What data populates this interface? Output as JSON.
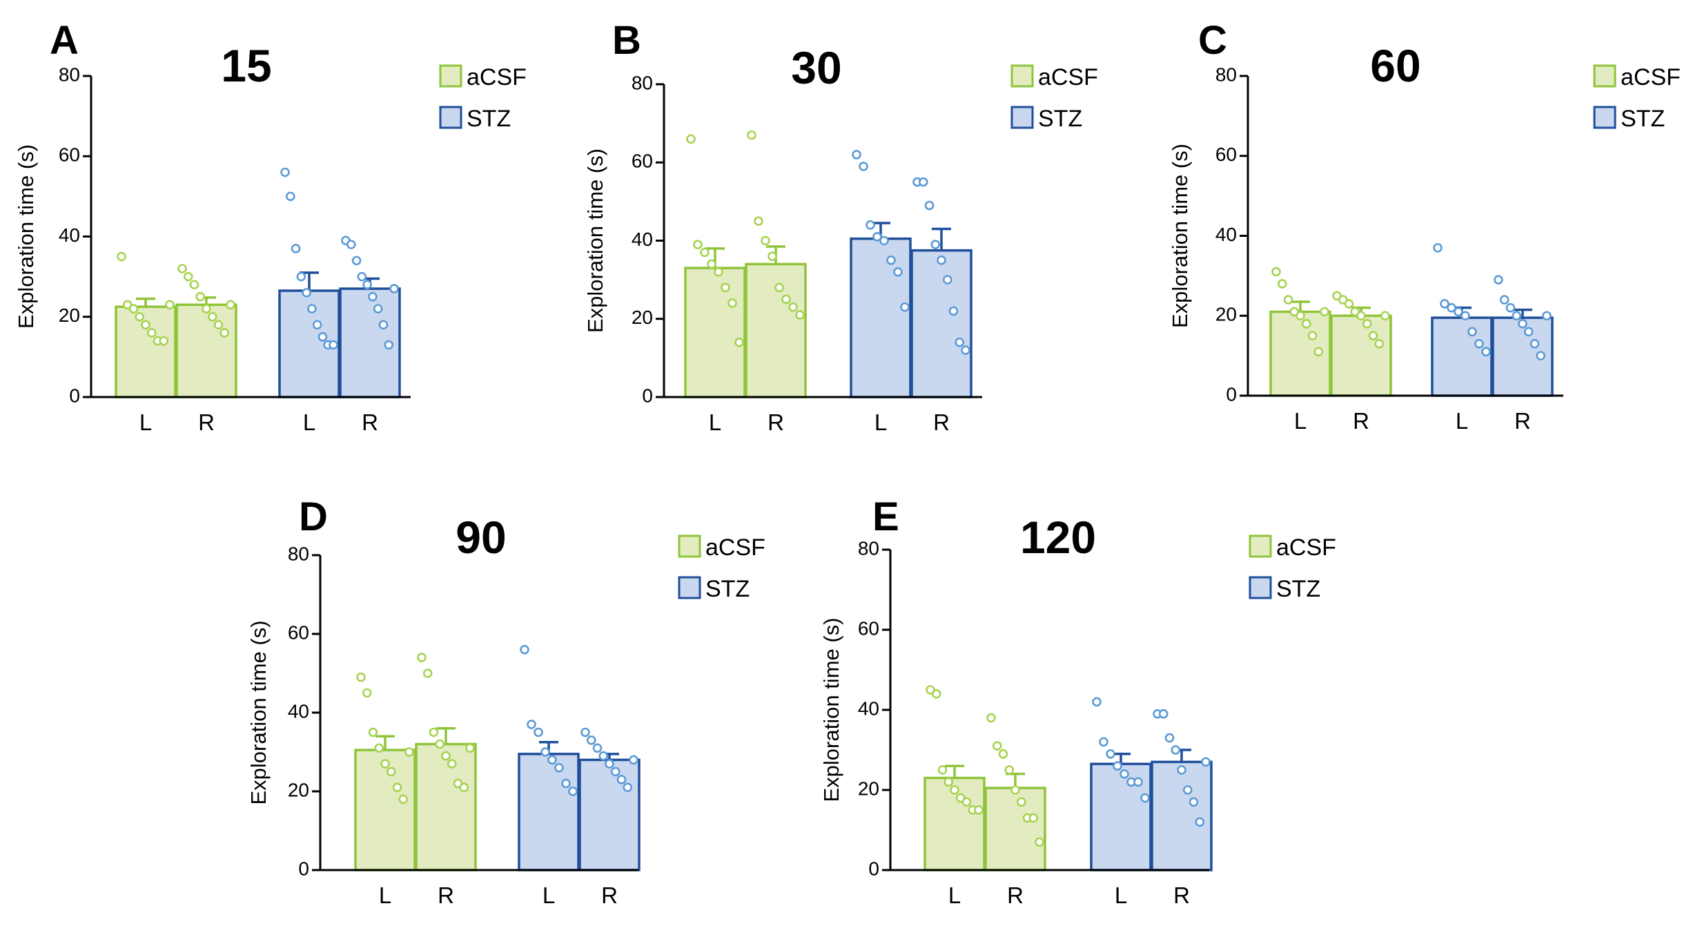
{
  "figure": {
    "colors": {
      "aCSF_fill": "#e2ecc0",
      "aCSF_stroke": "#8fc43a",
      "aCSF_dot": "#a6d350",
      "STZ_fill": "#cad8ef",
      "STZ_stroke": "#1f4e9a",
      "STZ_dot": "#5b9ad6"
    }
  },
  "chart_data": [
    {
      "type": "bar",
      "panel": "A",
      "title": "15",
      "ylabel": "Exploration time (s)",
      "xlabel": "",
      "ylim": [
        0,
        80
      ],
      "yticks": [
        0,
        20,
        40,
        60,
        80
      ],
      "categories": [
        "L",
        "R"
      ],
      "legend": [
        "aCSF",
        "STZ"
      ],
      "series": [
        {
          "name": "aCSF",
          "values": [
            22.5,
            23
          ],
          "sem": [
            2,
            1.8
          ],
          "points": [
            [
              35,
              23,
              22,
              20,
              18,
              16,
              14,
              14,
              23
            ],
            [
              32,
              30,
              28,
              25,
              22,
              20,
              18,
              16,
              23
            ]
          ]
        },
        {
          "name": "STZ",
          "values": [
            26.5,
            27
          ],
          "sem": [
            4.5,
            2.5
          ],
          "points": [
            [
              56,
              50,
              37,
              30,
              26,
              22,
              18,
              15,
              13,
              13
            ],
            [
              39,
              38,
              34,
              30,
              28,
              25,
              22,
              18,
              13,
              27
            ]
          ]
        }
      ]
    },
    {
      "type": "bar",
      "panel": "B",
      "title": "30",
      "ylabel": "Exploration time (s)",
      "xlabel": "",
      "ylim": [
        0,
        80
      ],
      "yticks": [
        0,
        20,
        40,
        60,
        80
      ],
      "categories": [
        "L",
        "R"
      ],
      "legend": [
        "aCSF",
        "STZ"
      ],
      "series": [
        {
          "name": "aCSF",
          "values": [
            33,
            34
          ],
          "sem": [
            5,
            4.5
          ],
          "points": [
            [
              66,
              39,
              37,
              34,
              32,
              28,
              24,
              14
            ],
            [
              67,
              45,
              40,
              36,
              28,
              25,
              23,
              21
            ]
          ]
        },
        {
          "name": "STZ",
          "values": [
            40.5,
            37.5
          ],
          "sem": [
            4,
            5.5
          ],
          "points": [
            [
              62,
              59,
              44,
              41,
              40,
              35,
              32,
              23
            ],
            [
              55,
              55,
              49,
              39,
              35,
              30,
              22,
              14,
              12
            ]
          ]
        }
      ]
    },
    {
      "type": "bar",
      "panel": "C",
      "title": "60",
      "ylabel": "Exploration time (s)",
      "xlabel": "",
      "ylim": [
        0,
        80
      ],
      "yticks": [
        0,
        20,
        40,
        60,
        80
      ],
      "categories": [
        "L",
        "R"
      ],
      "legend": [
        "aCSF",
        "STZ"
      ],
      "series": [
        {
          "name": "aCSF",
          "values": [
            21,
            20
          ],
          "sem": [
            2.5,
            2
          ],
          "points": [
            [
              31,
              28,
              24,
              21,
              20,
              18,
              15,
              11,
              21
            ],
            [
              25,
              24,
              23,
              21,
              20,
              18,
              15,
              13,
              20
            ]
          ]
        },
        {
          "name": "STZ",
          "values": [
            19.5,
            19.5
          ],
          "sem": [
            2.5,
            2
          ],
          "points": [
            [
              37,
              23,
              22,
              21,
              20,
              16,
              13,
              11
            ],
            [
              29,
              24,
              22,
              20,
              18,
              16,
              13,
              10,
              20
            ]
          ]
        }
      ]
    },
    {
      "type": "bar",
      "panel": "D",
      "title": "90",
      "ylabel": "Exploration time (s)",
      "xlabel": "",
      "ylim": [
        0,
        80
      ],
      "yticks": [
        0,
        20,
        40,
        60,
        80
      ],
      "categories": [
        "L",
        "R"
      ],
      "legend": [
        "aCSF",
        "STZ"
      ],
      "series": [
        {
          "name": "aCSF",
          "values": [
            30.5,
            32
          ],
          "sem": [
            3.5,
            4
          ],
          "points": [
            [
              49,
              45,
              35,
              31,
              27,
              25,
              21,
              18,
              30
            ],
            [
              54,
              50,
              35,
              32,
              29,
              27,
              22,
              21,
              31
            ]
          ]
        },
        {
          "name": "STZ",
          "values": [
            29.5,
            28
          ],
          "sem": [
            3,
            1.5
          ],
          "points": [
            [
              56,
              37,
              35,
              30,
              28,
              26,
              22,
              20
            ],
            [
              35,
              33,
              31,
              29,
              27,
              25,
              23,
              21,
              28
            ]
          ]
        }
      ]
    },
    {
      "type": "bar",
      "panel": "E",
      "title": "120",
      "ylabel": "Exploration time (s)",
      "xlabel": "",
      "ylim": [
        0,
        80
      ],
      "yticks": [
        0,
        20,
        40,
        60,
        80
      ],
      "categories": [
        "L",
        "R"
      ],
      "legend": [
        "aCSF",
        "STZ"
      ],
      "series": [
        {
          "name": "aCSF",
          "values": [
            23,
            20.5
          ],
          "sem": [
            3,
            3.5
          ],
          "points": [
            [
              45,
              44,
              25,
              22,
              20,
              18,
              17,
              15,
              15
            ],
            [
              38,
              31,
              29,
              25,
              20,
              17,
              13,
              13,
              7
            ]
          ]
        },
        {
          "name": "STZ",
          "values": [
            26.5,
            27
          ],
          "sem": [
            2.5,
            3
          ],
          "points": [
            [
              42,
              32,
              29,
              26,
              24,
              22,
              22,
              18
            ],
            [
              39,
              39,
              33,
              30,
              25,
              20,
              17,
              12,
              27
            ]
          ]
        }
      ]
    }
  ]
}
